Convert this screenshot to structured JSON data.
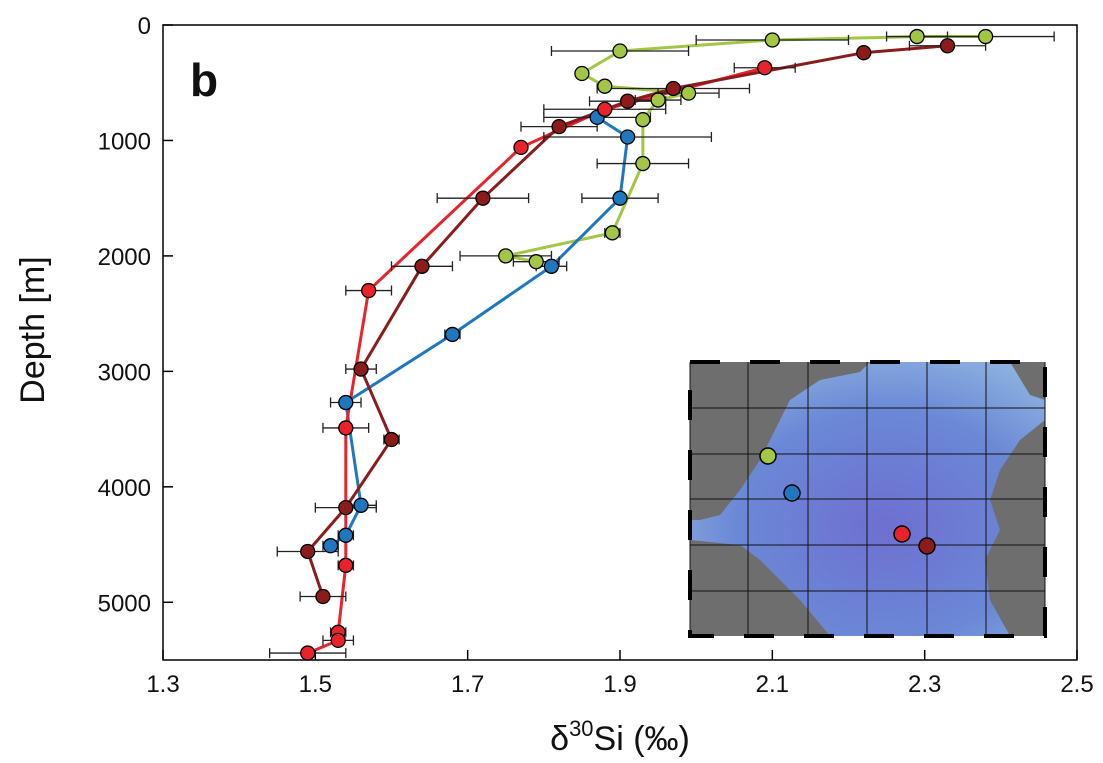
{
  "chart_data": {
    "type": "line",
    "panel_label": "b",
    "x_label": [
      "δ",
      "30",
      "Si (‰)"
    ],
    "y_label": "Depth [m]",
    "xlim": [
      1.3,
      2.5
    ],
    "xticks": [
      1.3,
      1.5,
      1.7,
      1.9,
      2.1,
      2.3,
      2.5
    ],
    "ylim": [
      0,
      5500
    ],
    "yticks": [
      0,
      1000,
      2000,
      3000,
      4000,
      5000
    ],
    "y_inverted": true,
    "series": [
      {
        "color": "#a3c644",
        "x": [
          2.38,
          2.29,
          2.1,
          1.9,
          1.85,
          1.88,
          1.99,
          1.95,
          1.93,
          1.93,
          1.89,
          1.75,
          1.79
        ],
        "y": [
          100,
          100,
          130,
          225,
          420,
          530,
          590,
          650,
          820,
          1200,
          1800,
          2000,
          2050
        ],
        "xerr": [
          0.09,
          0.04,
          0.1,
          0.09,
          null,
          null,
          0.04,
          0.03,
          null,
          0.06,
          0.01,
          0.06,
          0.03
        ]
      },
      {
        "color": "#1f77c0",
        "x": [
          1.87,
          1.91,
          1.9,
          1.81,
          1.68,
          1.54,
          1.56,
          1.54,
          1.52
        ],
        "y": [
          800,
          970,
          1500,
          2090,
          2680,
          3270,
          4160,
          4420,
          4510
        ],
        "xerr": [
          0.07,
          0.11,
          0.05,
          0.02,
          0.01,
          0.02,
          0.02,
          0.01,
          0.01
        ]
      },
      {
        "color": "#e8232c",
        "x": [
          2.09,
          1.88,
          1.77,
          1.57,
          1.54,
          1.54,
          1.53,
          1.53,
          1.49
        ],
        "y": [
          370,
          730,
          1060,
          2300,
          3490,
          4680,
          5260,
          5330,
          5440
        ],
        "xerr": [
          0.04,
          0.08,
          null,
          0.03,
          0.03,
          0.01,
          0.01,
          0.02,
          0.05
        ]
      },
      {
        "color": "#8c1c1c",
        "x": [
          2.33,
          2.22,
          1.97,
          1.91,
          1.82,
          1.72,
          1.64,
          1.56,
          1.6,
          1.54,
          1.49,
          1.51
        ],
        "y": [
          180,
          240,
          550,
          660,
          880,
          1500,
          2090,
          2980,
          3590,
          4180,
          4560,
          4950
        ],
        "xerr": [
          0.05,
          null,
          0.1,
          0.05,
          0.05,
          0.06,
          0.04,
          0.02,
          0.01,
          0.04,
          0.04,
          0.03
        ]
      }
    ]
  }
}
